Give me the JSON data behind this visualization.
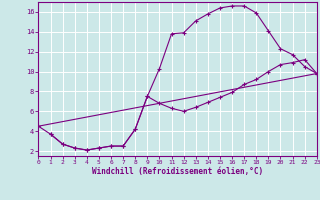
{
  "bg_color": "#cce8e8",
  "grid_color": "#ffffff",
  "line_color": "#7b0080",
  "xlim": [
    0,
    23
  ],
  "ylim": [
    1.5,
    17.0
  ],
  "xticks": [
    0,
    1,
    2,
    3,
    4,
    5,
    6,
    7,
    8,
    9,
    10,
    11,
    12,
    13,
    14,
    15,
    16,
    17,
    18,
    19,
    20,
    21,
    22,
    23
  ],
  "yticks": [
    2,
    4,
    6,
    8,
    10,
    12,
    14,
    16
  ],
  "xlabel": "Windchill (Refroidissement éolien,°C)",
  "curve1_x": [
    0,
    1,
    2,
    3,
    4,
    5,
    6,
    7,
    8,
    9,
    10,
    11,
    12,
    13,
    14,
    15,
    16,
    17,
    18,
    19,
    20,
    21,
    22,
    23
  ],
  "curve1_y": [
    4.5,
    3.7,
    2.7,
    2.3,
    2.1,
    2.3,
    2.5,
    2.5,
    4.2,
    7.5,
    10.3,
    13.8,
    13.9,
    15.1,
    15.8,
    16.4,
    16.6,
    16.6,
    15.9,
    14.1,
    12.3,
    11.7,
    10.5,
    9.8
  ],
  "curve2_x": [
    1,
    2,
    3,
    4,
    5,
    6,
    7,
    8,
    9,
    10,
    11,
    12,
    13,
    14,
    15,
    16,
    17,
    18,
    19,
    20,
    21,
    22,
    23
  ],
  "curve2_y": [
    3.7,
    2.7,
    2.3,
    2.1,
    2.3,
    2.5,
    2.5,
    4.2,
    7.5,
    6.8,
    6.3,
    6.0,
    6.4,
    6.9,
    7.4,
    7.9,
    8.7,
    9.2,
    10.0,
    10.7,
    10.9,
    11.2,
    9.8
  ],
  "curve3_x": [
    0,
    23
  ],
  "curve3_y": [
    4.5,
    9.8
  ]
}
